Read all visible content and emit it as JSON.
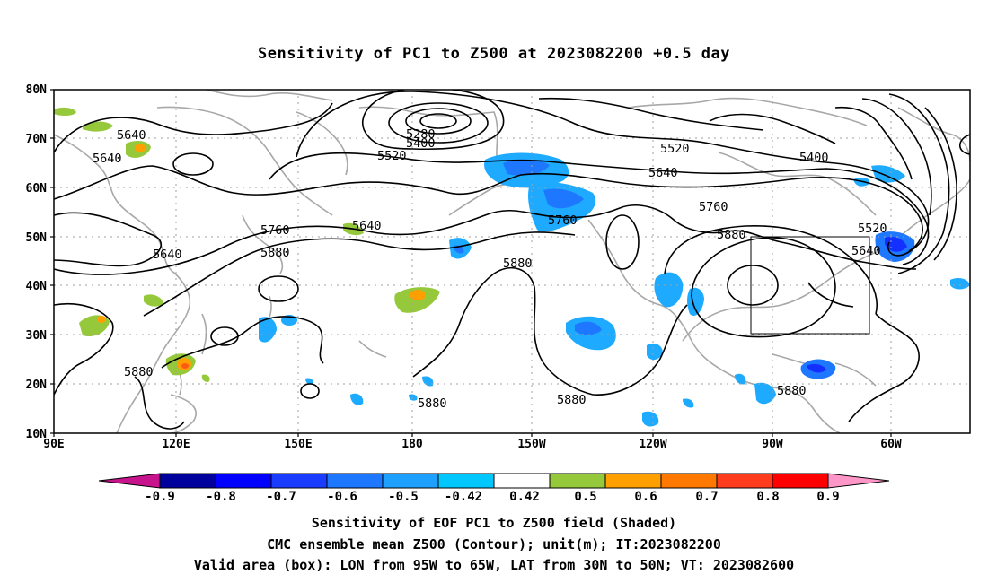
{
  "title": "Sensitivity of PC1 to Z500 at 2023082200 +0.5 day",
  "lat_ticks": [
    "80N",
    "70N",
    "60N",
    "50N",
    "40N",
    "30N",
    "20N",
    "10N"
  ],
  "lon_ticks": [
    "90E",
    "120E",
    "150E",
    "180",
    "150W",
    "120W",
    "90W",
    "60W"
  ],
  "contour_labels": [
    {
      "id": "a",
      "text": "5640"
    },
    {
      "id": "b",
      "text": "5640"
    },
    {
      "id": "c",
      "text": "5280"
    },
    {
      "id": "d",
      "text": "5400"
    },
    {
      "id": "e",
      "text": "5520"
    },
    {
      "id": "f",
      "text": "5520"
    },
    {
      "id": "g",
      "text": "5640"
    },
    {
      "id": "h",
      "text": "5400"
    },
    {
      "id": "i",
      "text": "5760"
    },
    {
      "id": "j",
      "text": "5640"
    },
    {
      "id": "k",
      "text": "5640"
    },
    {
      "id": "l",
      "text": "5880"
    },
    {
      "id": "m",
      "text": "5760"
    },
    {
      "id": "n",
      "text": "5760"
    },
    {
      "id": "o",
      "text": "5880"
    },
    {
      "id": "p",
      "text": "5880"
    },
    {
      "id": "q",
      "text": "5520"
    },
    {
      "id": "r",
      "text": "5640"
    },
    {
      "id": "s",
      "text": "5880"
    },
    {
      "id": "t",
      "text": "5880"
    },
    {
      "id": "u",
      "text": "5880"
    },
    {
      "id": "v",
      "text": "5880"
    }
  ],
  "valid_box": {
    "lon_from": "95W",
    "lon_to": "65W",
    "lat_from": "30N",
    "lat_to": "50N"
  },
  "colorbar": {
    "labels": [
      "-0.9",
      "-0.8",
      "-0.7",
      "-0.6",
      "-0.5",
      "-0.42",
      "0.42",
      "0.5",
      "0.6",
      "0.7",
      "0.8",
      "0.9"
    ],
    "colors": [
      "#00009c",
      "#0000ff",
      "#1a3cff",
      "#1e78ff",
      "#1ea0ff",
      "#00c8ff",
      "#ffffff",
      "#96c83c",
      "#ffa000",
      "#ff7800",
      "#ff3c1e",
      "#ff0000"
    ],
    "low_end_color": "#c8148c",
    "high_end_color": "#ff96c8"
  },
  "shade_colors": {
    "neg_light": "#1eaaff",
    "neg_mid": "#1e78ff",
    "neg_dark": "#1430ff",
    "pos_green": "#96c83c",
    "pos_orange": "#ffa000",
    "pos_red": "#ff5a14"
  },
  "captions": [
    "Sensitivity of EOF PC1 to Z500 field (Shaded)",
    "CMC ensemble mean Z500 (Contour); unit(m); IT:2023082200",
    "Valid area (box): LON from 95W to 65W, LAT from 30N to 50N; VT: 2023082600"
  ]
}
